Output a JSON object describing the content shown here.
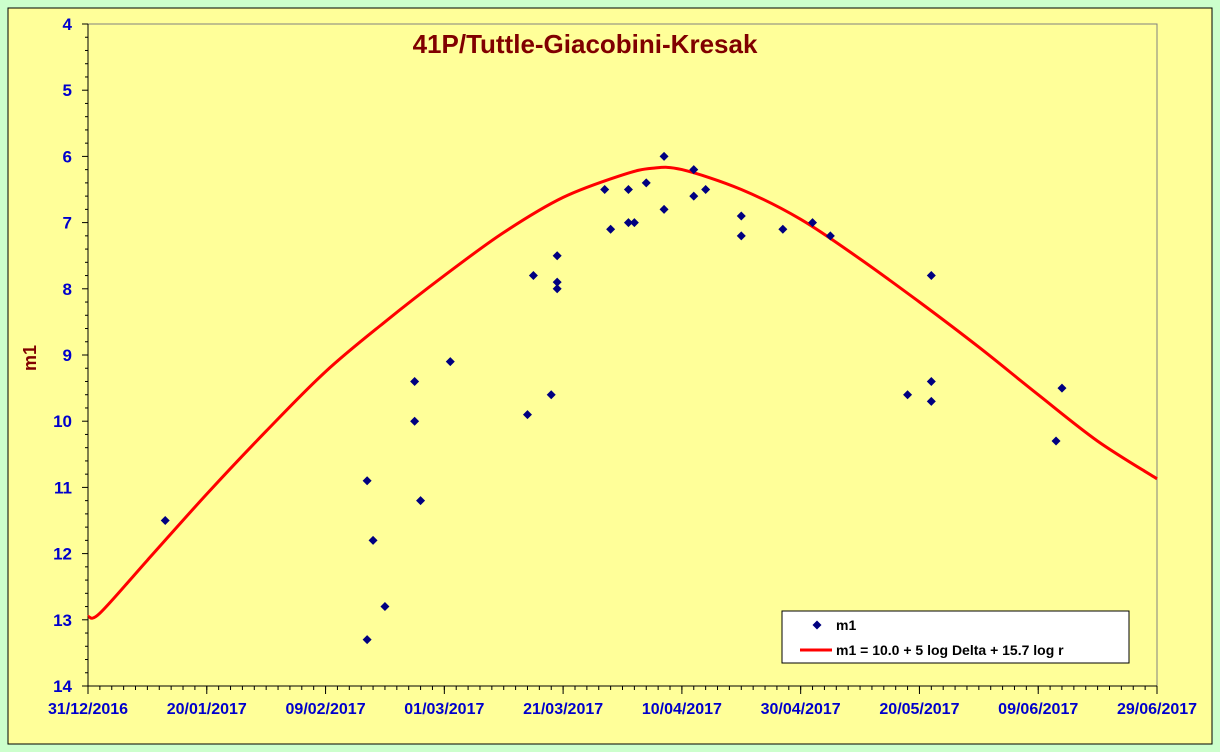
{
  "chart_data": {
    "type": "scatter",
    "title": "41P/Tuttle-Giacobini-Kresak",
    "xlabel": "",
    "ylabel": "m1",
    "x_axis": {
      "type": "date",
      "min": "2016-12-31",
      "max": "2017-06-29",
      "tick_labels": [
        "31/12/2016",
        "20/01/2017",
        "09/02/2017",
        "01/03/2017",
        "21/03/2017",
        "10/04/2017",
        "30/04/2017",
        "20/05/2017",
        "09/06/2017",
        "29/06/2017"
      ]
    },
    "y_axis": {
      "min": 4,
      "max": 14,
      "reversed": true,
      "tick_labels": [
        "4",
        "5",
        "6",
        "7",
        "8",
        "9",
        "10",
        "11",
        "12",
        "13",
        "14"
      ]
    },
    "grid": false,
    "legend": {
      "placement": "bottom-right"
    },
    "colors": {
      "plot_bg": "#ffff99",
      "page_bg": "#ccffcc",
      "points": "#000080",
      "curve": "#ff0000",
      "ticks": "#0000cc",
      "title": "#800000"
    },
    "series": [
      {
        "name": "m1",
        "kind": "scatter",
        "points": [
          {
            "x": "2017-01-13",
            "y": 11.5
          },
          {
            "x": "2017-02-16",
            "y": 10.9
          },
          {
            "x": "2017-02-16",
            "y": 13.3
          },
          {
            "x": "2017-02-17",
            "y": 11.8
          },
          {
            "x": "2017-02-19",
            "y": 12.8
          },
          {
            "x": "2017-02-24",
            "y": 9.4
          },
          {
            "x": "2017-02-24",
            "y": 10.0
          },
          {
            "x": "2017-02-25",
            "y": 11.2
          },
          {
            "x": "2017-03-02",
            "y": 9.1
          },
          {
            "x": "2017-03-15",
            "y": 9.9
          },
          {
            "x": "2017-03-16",
            "y": 7.8
          },
          {
            "x": "2017-03-19",
            "y": 9.6
          },
          {
            "x": "2017-03-20",
            "y": 7.5
          },
          {
            "x": "2017-03-20",
            "y": 7.9
          },
          {
            "x": "2017-03-20",
            "y": 8.0
          },
          {
            "x": "2017-03-28",
            "y": 6.5
          },
          {
            "x": "2017-03-29",
            "y": 7.1
          },
          {
            "x": "2017-04-01",
            "y": 7.0
          },
          {
            "x": "2017-04-01",
            "y": 6.5
          },
          {
            "x": "2017-04-02",
            "y": 7.0
          },
          {
            "x": "2017-04-04",
            "y": 6.4
          },
          {
            "x": "2017-04-07",
            "y": 6.8
          },
          {
            "x": "2017-04-07",
            "y": 6.0
          },
          {
            "x": "2017-04-12",
            "y": 6.2
          },
          {
            "x": "2017-04-12",
            "y": 6.6
          },
          {
            "x": "2017-04-14",
            "y": 6.5
          },
          {
            "x": "2017-04-20",
            "y": 6.9
          },
          {
            "x": "2017-04-20",
            "y": 7.2
          },
          {
            "x": "2017-04-27",
            "y": 7.1
          },
          {
            "x": "2017-05-02",
            "y": 7.0
          },
          {
            "x": "2017-05-05",
            "y": 7.2
          },
          {
            "x": "2017-05-18",
            "y": 9.6
          },
          {
            "x": "2017-05-22",
            "y": 9.4
          },
          {
            "x": "2017-05-22",
            "y": 9.7
          },
          {
            "x": "2017-05-22",
            "y": 7.8
          },
          {
            "x": "2017-06-12",
            "y": 10.3
          },
          {
            "x": "2017-06-13",
            "y": 9.5
          }
        ]
      },
      {
        "name": "m1 = 10.0 + 5 log Delta + 15.7 log r",
        "kind": "line",
        "points": [
          {
            "x": "2016-12-31",
            "y": 12.95
          },
          {
            "x": "2017-01-02",
            "y": 12.9
          },
          {
            "x": "2017-01-10",
            "y": 12.1
          },
          {
            "x": "2017-01-20",
            "y": 11.1
          },
          {
            "x": "2017-01-30",
            "y": 10.15
          },
          {
            "x": "2017-02-09",
            "y": 9.25
          },
          {
            "x": "2017-02-19",
            "y": 8.5
          },
          {
            "x": "2017-03-01",
            "y": 7.8
          },
          {
            "x": "2017-03-11",
            "y": 7.15
          },
          {
            "x": "2017-03-21",
            "y": 6.62
          },
          {
            "x": "2017-03-31",
            "y": 6.28
          },
          {
            "x": "2017-04-05",
            "y": 6.18
          },
          {
            "x": "2017-04-10",
            "y": 6.2
          },
          {
            "x": "2017-04-20",
            "y": 6.5
          },
          {
            "x": "2017-04-30",
            "y": 6.95
          },
          {
            "x": "2017-05-10",
            "y": 7.55
          },
          {
            "x": "2017-05-20",
            "y": 8.2
          },
          {
            "x": "2017-05-30",
            "y": 8.88
          },
          {
            "x": "2017-06-09",
            "y": 9.6
          },
          {
            "x": "2017-06-19",
            "y": 10.3
          },
          {
            "x": "2017-06-29",
            "y": 10.87
          }
        ]
      }
    ]
  }
}
